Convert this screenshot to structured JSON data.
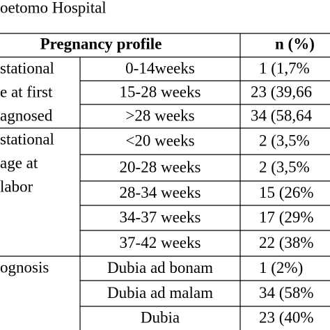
{
  "title": "oetomo Hospital",
  "table": {
    "header": [
      "Pregnancy profile",
      "n (%)"
    ],
    "groups": [
      {
        "label": [
          "stational",
          "e at first",
          "agnosed"
        ],
        "rows": [
          [
            "0-14weeks",
            "1 (1,7%"
          ],
          [
            "15-28    weeks",
            "23 (39,66"
          ],
          [
            ">28 weeks",
            "34 (58,64"
          ]
        ]
      },
      {
        "label": [
          "stational",
          "age at",
          "labor"
        ],
        "rows": [
          [
            "<20 weeks",
            "2 (3,5%"
          ],
          [
            "20-28 weeks",
            "2 (3,5%"
          ],
          [
            "28-34 weeks",
            "15 (26%"
          ],
          [
            "34-37 weeks",
            "17 (29%"
          ],
          [
            "37-42 weeks",
            "22 (38%"
          ]
        ]
      },
      {
        "label": [
          "ognosis"
        ],
        "rows": [
          [
            "Dubia ad bonam",
            "1 (2%)"
          ],
          [
            "Dubia ad malam",
            "34 (58%"
          ],
          [
            "Dubia",
            "23 (40%"
          ]
        ]
      }
    ]
  }
}
